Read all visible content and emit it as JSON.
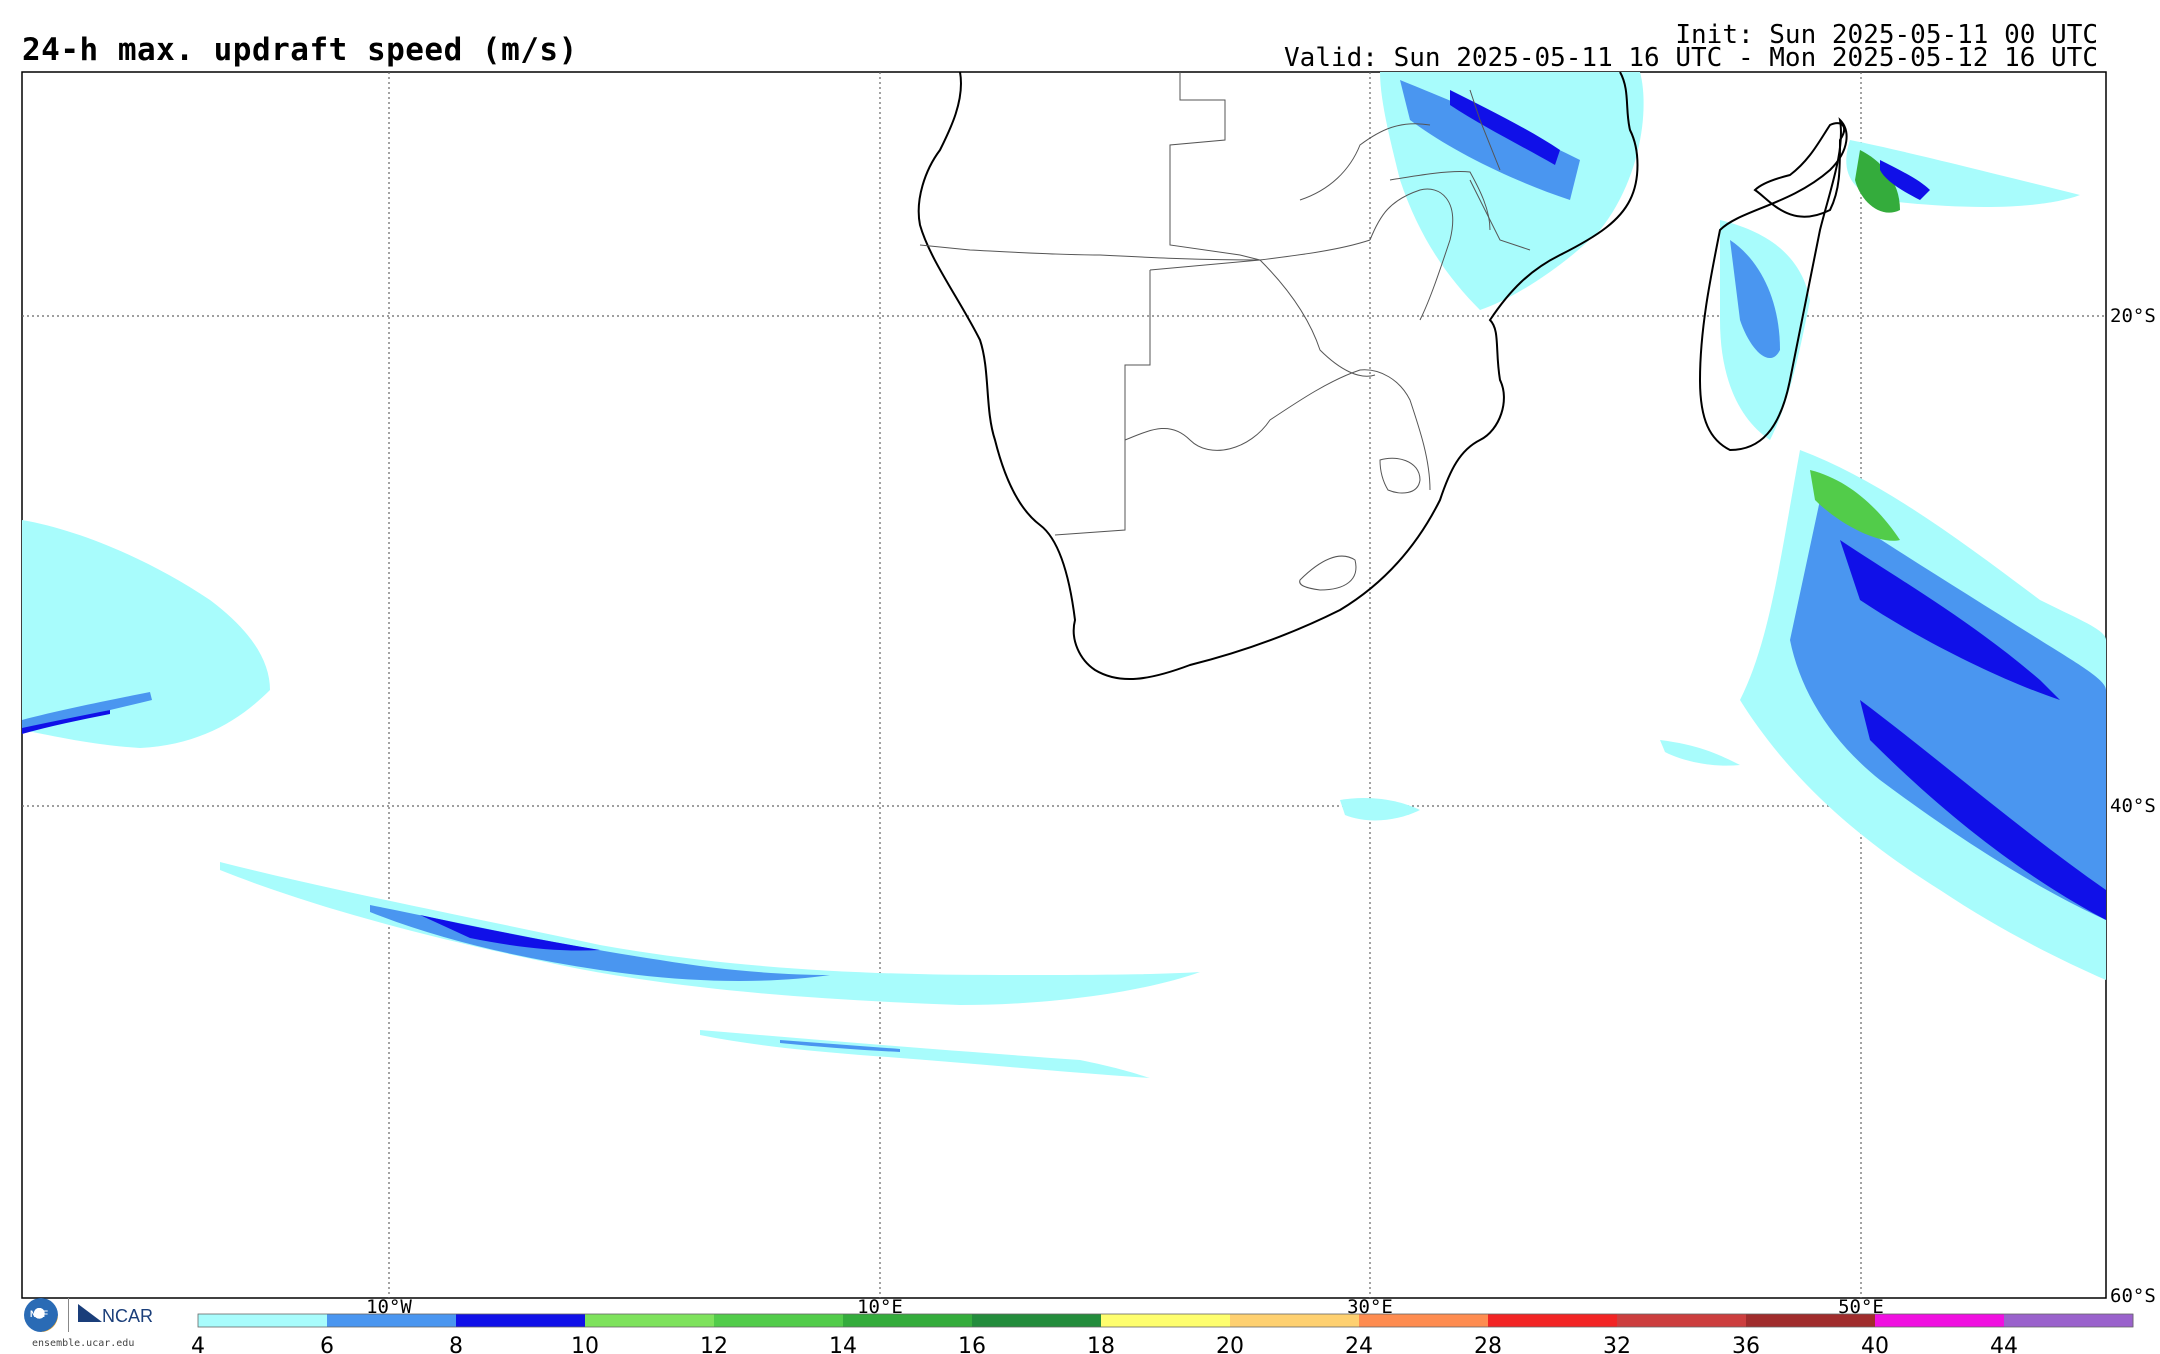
{
  "header": {
    "title": "24-h max. updraft speed (m/s)",
    "init": "Init: Sun 2025-05-11 00 UTC",
    "valid": "Valid: Sun 2025-05-11 16 UTC - Mon 2025-05-12 16 UTC"
  },
  "map": {
    "lat_labels": [
      "20°S",
      "40°S",
      "60°S"
    ],
    "lon_labels": [
      "10°W",
      "10°E",
      "30°E",
      "50°E"
    ],
    "grid": "dotted"
  },
  "colorbar": {
    "ticks": [
      "4",
      "6",
      "8",
      "10",
      "12",
      "14",
      "16",
      "18",
      "20",
      "24",
      "28",
      "32",
      "36",
      "40",
      "44"
    ],
    "colors": [
      "#a8fcfc",
      "#4a96f0",
      "#1010e8",
      "#7ee25c",
      "#52cc4a",
      "#34ac3c",
      "#238c3c",
      "#fefe6e",
      "#fed070",
      "#fe8c50",
      "#f22424",
      "#cc3e3e",
      "#a02c2c",
      "#f010e0",
      "#9a62cc"
    ]
  },
  "logo": {
    "nsf": "NSF",
    "ncar": "NCAR",
    "url": "ensemble.ucar.edu"
  }
}
